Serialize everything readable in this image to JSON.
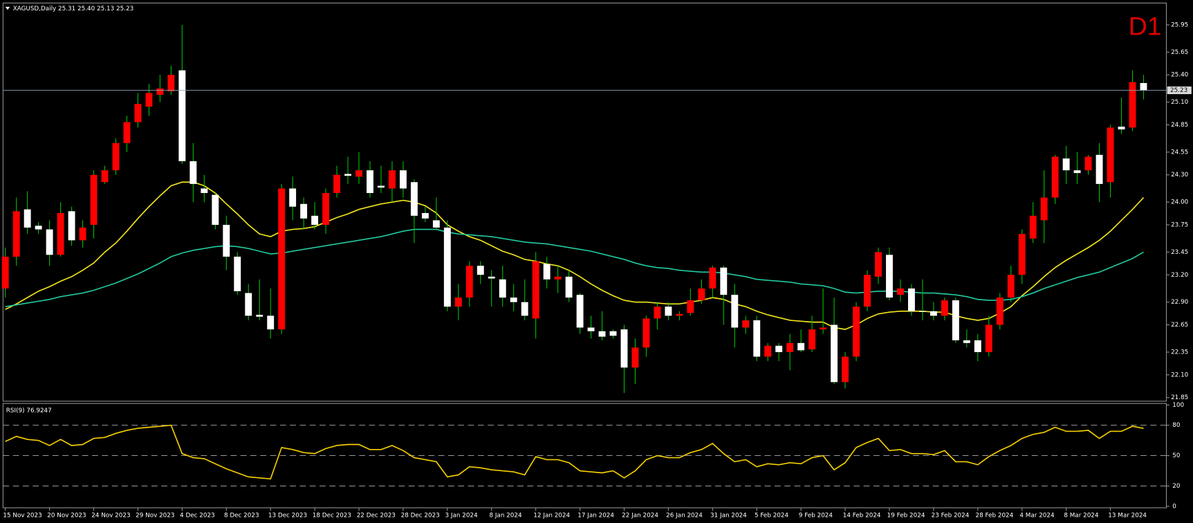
{
  "chart_data": [
    {
      "type": "candlestick",
      "symbol": "XAGUSD,Daily",
      "timeframe": "D1",
      "last_bar_labels": [
        "25.31",
        "25.40",
        "25.13",
        "25.23"
      ],
      "categories": [
        "15 Nov 2023",
        null,
        null,
        null,
        "20 Nov 2023",
        null,
        null,
        null,
        "24 Nov 2023",
        null,
        null,
        null,
        "29 Nov 2023",
        null,
        null,
        null,
        "4 Dec 2023",
        null,
        null,
        null,
        "8 Dec 2023",
        null,
        null,
        null,
        "13 Dec 2023",
        null,
        null,
        null,
        "18 Dec 2023",
        null,
        null,
        null,
        "22 Dec 2023",
        null,
        null,
        null,
        "28 Dec 2023",
        null,
        null,
        null,
        "3 Jan 2024",
        null,
        null,
        null,
        "8 Jan 2024",
        null,
        null,
        null,
        "12 Jan 2024",
        null,
        null,
        null,
        "17 Jan 2024",
        null,
        null,
        null,
        "22 Jan 2024",
        null,
        null,
        null,
        "26 Jan 2024",
        null,
        null,
        null,
        "31 Jan 2024",
        null,
        null,
        null,
        "5 Feb 2024",
        null,
        null,
        null,
        "9 Feb 2024",
        null,
        null,
        null,
        "14 Feb 2024",
        null,
        null,
        null,
        "19 Feb 2024",
        null,
        null,
        null,
        "23 Feb 2024",
        null,
        null,
        null,
        "28 Feb 2024",
        null,
        null,
        null,
        "4 Mar 2024",
        null,
        null,
        null,
        "8 Mar 2024",
        null,
        null,
        null,
        "13 Mar 2024",
        null,
        null,
        null
      ],
      "open": [
        23.05,
        23.4,
        23.92,
        23.74,
        23.7,
        23.42,
        23.9,
        23.58,
        23.75,
        24.22,
        24.35,
        24.65,
        24.88,
        25.05,
        25.18,
        25.22,
        25.45,
        24.45,
        24.15,
        24.08,
        23.75,
        23.4,
        23.0,
        22.76,
        22.75,
        22.6,
        24.15,
        23.98,
        23.85,
        23.75,
        24.1,
        24.31,
        24.28,
        24.35,
        24.18,
        24.15,
        24.35,
        24.22,
        23.88,
        23.8,
        23.72,
        22.85,
        22.95,
        23.3,
        23.18,
        23.15,
        22.95,
        22.9,
        22.72,
        23.32,
        23.15,
        23.18,
        22.98,
        22.62,
        22.58,
        22.58,
        22.6,
        22.18,
        22.4,
        22.72,
        22.85,
        22.75,
        22.78,
        22.92,
        23.05,
        23.28,
        22.98,
        22.62,
        22.7,
        22.3,
        22.42,
        22.35,
        22.45,
        22.38,
        22.6,
        22.65,
        22.02,
        22.3,
        22.85,
        23.18,
        23.42,
        22.98,
        23.05,
        22.8,
        22.8,
        22.75,
        22.92,
        22.48,
        22.48,
        22.35,
        22.65,
        22.95,
        23.2,
        23.6,
        23.8,
        24.05,
        24.48,
        24.35,
        24.35,
        24.52,
        24.22,
        24.83,
        24.82,
        25.31
      ],
      "high": [
        23.5,
        24.05,
        24.12,
        23.78,
        23.8,
        24.0,
        23.95,
        23.8,
        24.35,
        24.4,
        24.7,
        24.95,
        25.2,
        25.3,
        25.4,
        25.5,
        25.95,
        24.65,
        24.3,
        24.1,
        23.85,
        23.45,
        23.1,
        23.15,
        23.05,
        24.2,
        24.28,
        24.05,
        24.0,
        24.15,
        24.4,
        24.5,
        24.55,
        24.45,
        24.4,
        24.45,
        24.45,
        24.25,
        23.95,
        24.05,
        23.8,
        23.1,
        23.35,
        23.35,
        23.25,
        23.3,
        23.1,
        23.15,
        23.45,
        23.4,
        23.3,
        23.25,
        23.0,
        22.75,
        22.8,
        22.6,
        22.65,
        22.5,
        22.75,
        22.9,
        22.9,
        22.8,
        23.05,
        23.15,
        23.3,
        23.3,
        23.1,
        22.75,
        22.75,
        22.45,
        22.45,
        22.55,
        22.6,
        22.75,
        23.05,
        22.95,
        22.35,
        22.9,
        23.25,
        23.5,
        23.5,
        23.15,
        23.1,
        23.15,
        22.9,
        22.95,
        22.95,
        22.6,
        22.55,
        22.75,
        23.0,
        23.3,
        23.7,
        24.0,
        24.35,
        24.52,
        24.62,
        24.55,
        24.52,
        24.65,
        24.85,
        25.15,
        25.45,
        25.4
      ],
      "low": [
        22.95,
        23.3,
        23.65,
        23.65,
        23.3,
        23.4,
        23.52,
        23.5,
        23.6,
        24.2,
        24.3,
        24.55,
        24.82,
        24.95,
        25.1,
        25.18,
        24.42,
        24.0,
        24.0,
        23.7,
        23.25,
        22.98,
        22.7,
        22.7,
        22.5,
        22.55,
        23.8,
        23.7,
        23.7,
        23.65,
        24.05,
        24.2,
        24.2,
        24.05,
        24.1,
        24.0,
        24.05,
        23.55,
        23.78,
        23.7,
        22.8,
        22.7,
        22.85,
        23.1,
        22.85,
        22.85,
        22.8,
        22.7,
        22.5,
        23.05,
        23.0,
        22.9,
        22.55,
        22.5,
        22.48,
        22.5,
        21.9,
        22.0,
        22.3,
        22.6,
        22.7,
        22.7,
        22.75,
        22.88,
        22.95,
        22.65,
        22.4,
        22.55,
        22.25,
        22.25,
        22.25,
        22.15,
        22.35,
        22.35,
        22.55,
        22.0,
        21.95,
        22.25,
        22.8,
        23.1,
        22.92,
        22.9,
        22.75,
        22.7,
        22.7,
        22.7,
        22.45,
        22.4,
        22.25,
        22.3,
        22.6,
        22.9,
        23.1,
        23.55,
        23.55,
        23.98,
        24.2,
        24.2,
        24.3,
        24.0,
        24.05,
        24.75,
        24.78,
        25.13
      ],
      "close": [
        23.4,
        23.9,
        23.72,
        23.7,
        23.42,
        23.88,
        23.58,
        23.72,
        24.3,
        24.35,
        24.65,
        24.88,
        25.08,
        25.2,
        25.25,
        25.4,
        24.45,
        24.2,
        24.1,
        23.75,
        23.4,
        23.02,
        22.75,
        22.74,
        22.6,
        24.15,
        23.95,
        23.82,
        23.75,
        24.1,
        24.3,
        24.29,
        24.35,
        24.1,
        24.16,
        24.35,
        24.15,
        23.85,
        23.82,
        23.72,
        22.85,
        22.95,
        23.3,
        23.2,
        23.16,
        22.95,
        22.9,
        22.75,
        23.35,
        23.15,
        23.18,
        22.95,
        22.62,
        22.58,
        22.52,
        22.53,
        22.18,
        22.4,
        22.72,
        22.85,
        22.75,
        22.77,
        22.92,
        23.05,
        23.28,
        22.98,
        22.62,
        22.7,
        22.3,
        22.42,
        22.35,
        22.45,
        22.37,
        22.6,
        22.62,
        22.02,
        22.3,
        22.85,
        23.2,
        23.45,
        22.95,
        23.05,
        22.8,
        22.8,
        22.75,
        22.92,
        22.48,
        22.45,
        22.35,
        22.65,
        22.95,
        23.2,
        23.65,
        23.85,
        24.05,
        24.5,
        24.35,
        24.32,
        24.5,
        24.2,
        24.82,
        24.8,
        25.32,
        25.23
      ],
      "up_color": "#ff0000",
      "down_color": "#ffffff",
      "wick_color": "#00c000",
      "overlays": [
        {
          "color": "#f2e61c",
          "values": [
            22.82,
            22.88,
            22.95,
            23.02,
            23.07,
            23.13,
            23.18,
            23.25,
            23.33,
            23.45,
            23.55,
            23.68,
            23.82,
            23.95,
            24.07,
            24.18,
            24.22,
            24.22,
            24.18,
            24.1,
            23.98,
            23.87,
            23.75,
            23.65,
            23.62,
            23.68,
            23.7,
            23.71,
            23.73,
            23.78,
            23.83,
            23.87,
            23.92,
            23.95,
            23.98,
            24.0,
            24.02,
            24.0,
            23.96,
            23.88,
            23.75,
            23.68,
            23.62,
            23.58,
            23.52,
            23.46,
            23.42,
            23.37,
            23.35,
            23.32,
            23.3,
            23.25,
            23.18,
            23.1,
            23.03,
            22.97,
            22.92,
            22.9,
            22.9,
            22.89,
            22.88,
            22.88,
            22.9,
            22.92,
            22.95,
            22.93,
            22.88,
            22.85,
            22.8,
            22.76,
            22.73,
            22.7,
            22.69,
            22.68,
            22.68,
            22.62,
            22.6,
            22.65,
            22.72,
            22.77,
            22.79,
            22.8,
            22.8,
            22.8,
            22.79,
            22.79,
            22.75,
            22.72,
            22.7,
            22.72,
            22.78,
            22.85,
            22.97,
            23.07,
            23.18,
            23.28,
            23.36,
            23.43,
            23.5,
            23.58,
            23.68,
            23.8,
            23.92,
            24.05
          ]
        },
        {
          "color": "#22c9a0",
          "values": [
            22.85,
            22.87,
            22.89,
            22.91,
            22.93,
            22.96,
            22.98,
            23.0,
            23.03,
            23.07,
            23.11,
            23.16,
            23.21,
            23.27,
            23.33,
            23.4,
            23.44,
            23.47,
            23.49,
            23.51,
            23.52,
            23.51,
            23.49,
            23.46,
            23.43,
            23.44,
            23.46,
            23.48,
            23.5,
            23.52,
            23.54,
            23.56,
            23.58,
            23.6,
            23.62,
            23.65,
            23.68,
            23.7,
            23.7,
            23.7,
            23.67,
            23.65,
            23.64,
            23.63,
            23.62,
            23.6,
            23.58,
            23.56,
            23.55,
            23.54,
            23.52,
            23.5,
            23.48,
            23.46,
            23.43,
            23.4,
            23.37,
            23.33,
            23.3,
            23.28,
            23.27,
            23.25,
            23.24,
            23.23,
            23.23,
            23.22,
            23.2,
            23.18,
            23.15,
            23.14,
            23.13,
            23.12,
            23.1,
            23.09,
            23.08,
            23.05,
            23.01,
            23.0,
            23.01,
            23.02,
            23.02,
            23.02,
            23.01,
            23.0,
            23.0,
            22.99,
            22.98,
            22.96,
            22.93,
            22.92,
            22.92,
            22.93,
            22.96,
            23.0,
            23.05,
            23.09,
            23.13,
            23.17,
            23.2,
            23.23,
            23.28,
            23.33,
            23.38,
            23.45
          ]
        }
      ],
      "ylim": [
        21.81,
        26.19
      ],
      "yticks": [
        25.95,
        25.65,
        {
          "value": 25.4,
          "label": "25.40"
        },
        {
          "value": 25.1,
          "label": "25.10"
        },
        24.85,
        24.55,
        {
          "value": 24.3,
          "label": "24.30"
        },
        {
          "value": 24,
          "label": "24.00"
        },
        23.75,
        23.45,
        {
          "value": 23.2,
          "label": "23.20"
        },
        {
          "value": 22.9,
          "label": "22.90"
        },
        22.65,
        22.35,
        {
          "value": 22.1,
          "label": "22.10"
        },
        21.85
      ]
    },
    {
      "type": "line",
      "indicator": "RSI(9)",
      "color": "#f5d000",
      "values": [
        64,
        69,
        66,
        65,
        60,
        66,
        60,
        61,
        67,
        68,
        72,
        75,
        77,
        78,
        79,
        80,
        52,
        48,
        47,
        42,
        37,
        33,
        29,
        28,
        27,
        58,
        56,
        53,
        52,
        57,
        60,
        61,
        61,
        56,
        56,
        60,
        55,
        48,
        46,
        44,
        29,
        31,
        39,
        38,
        36,
        35,
        34,
        31,
        49,
        46,
        46,
        43,
        35,
        34,
        33,
        35,
        28,
        35,
        46,
        50,
        48,
        48,
        53,
        56,
        62,
        52,
        44,
        46,
        39,
        42,
        41,
        43,
        42,
        48,
        50,
        36,
        43,
        58,
        63,
        67,
        55,
        56,
        52,
        52,
        51,
        55,
        44,
        44,
        41,
        49,
        55,
        60,
        67,
        71,
        73,
        78,
        74,
        74,
        75,
        67,
        74,
        74,
        79,
        76.9247
      ],
      "ylim": [
        0,
        100
      ],
      "yticks": [
        100,
        80,
        50,
        20,
        0
      ]
    }
  ]
}
